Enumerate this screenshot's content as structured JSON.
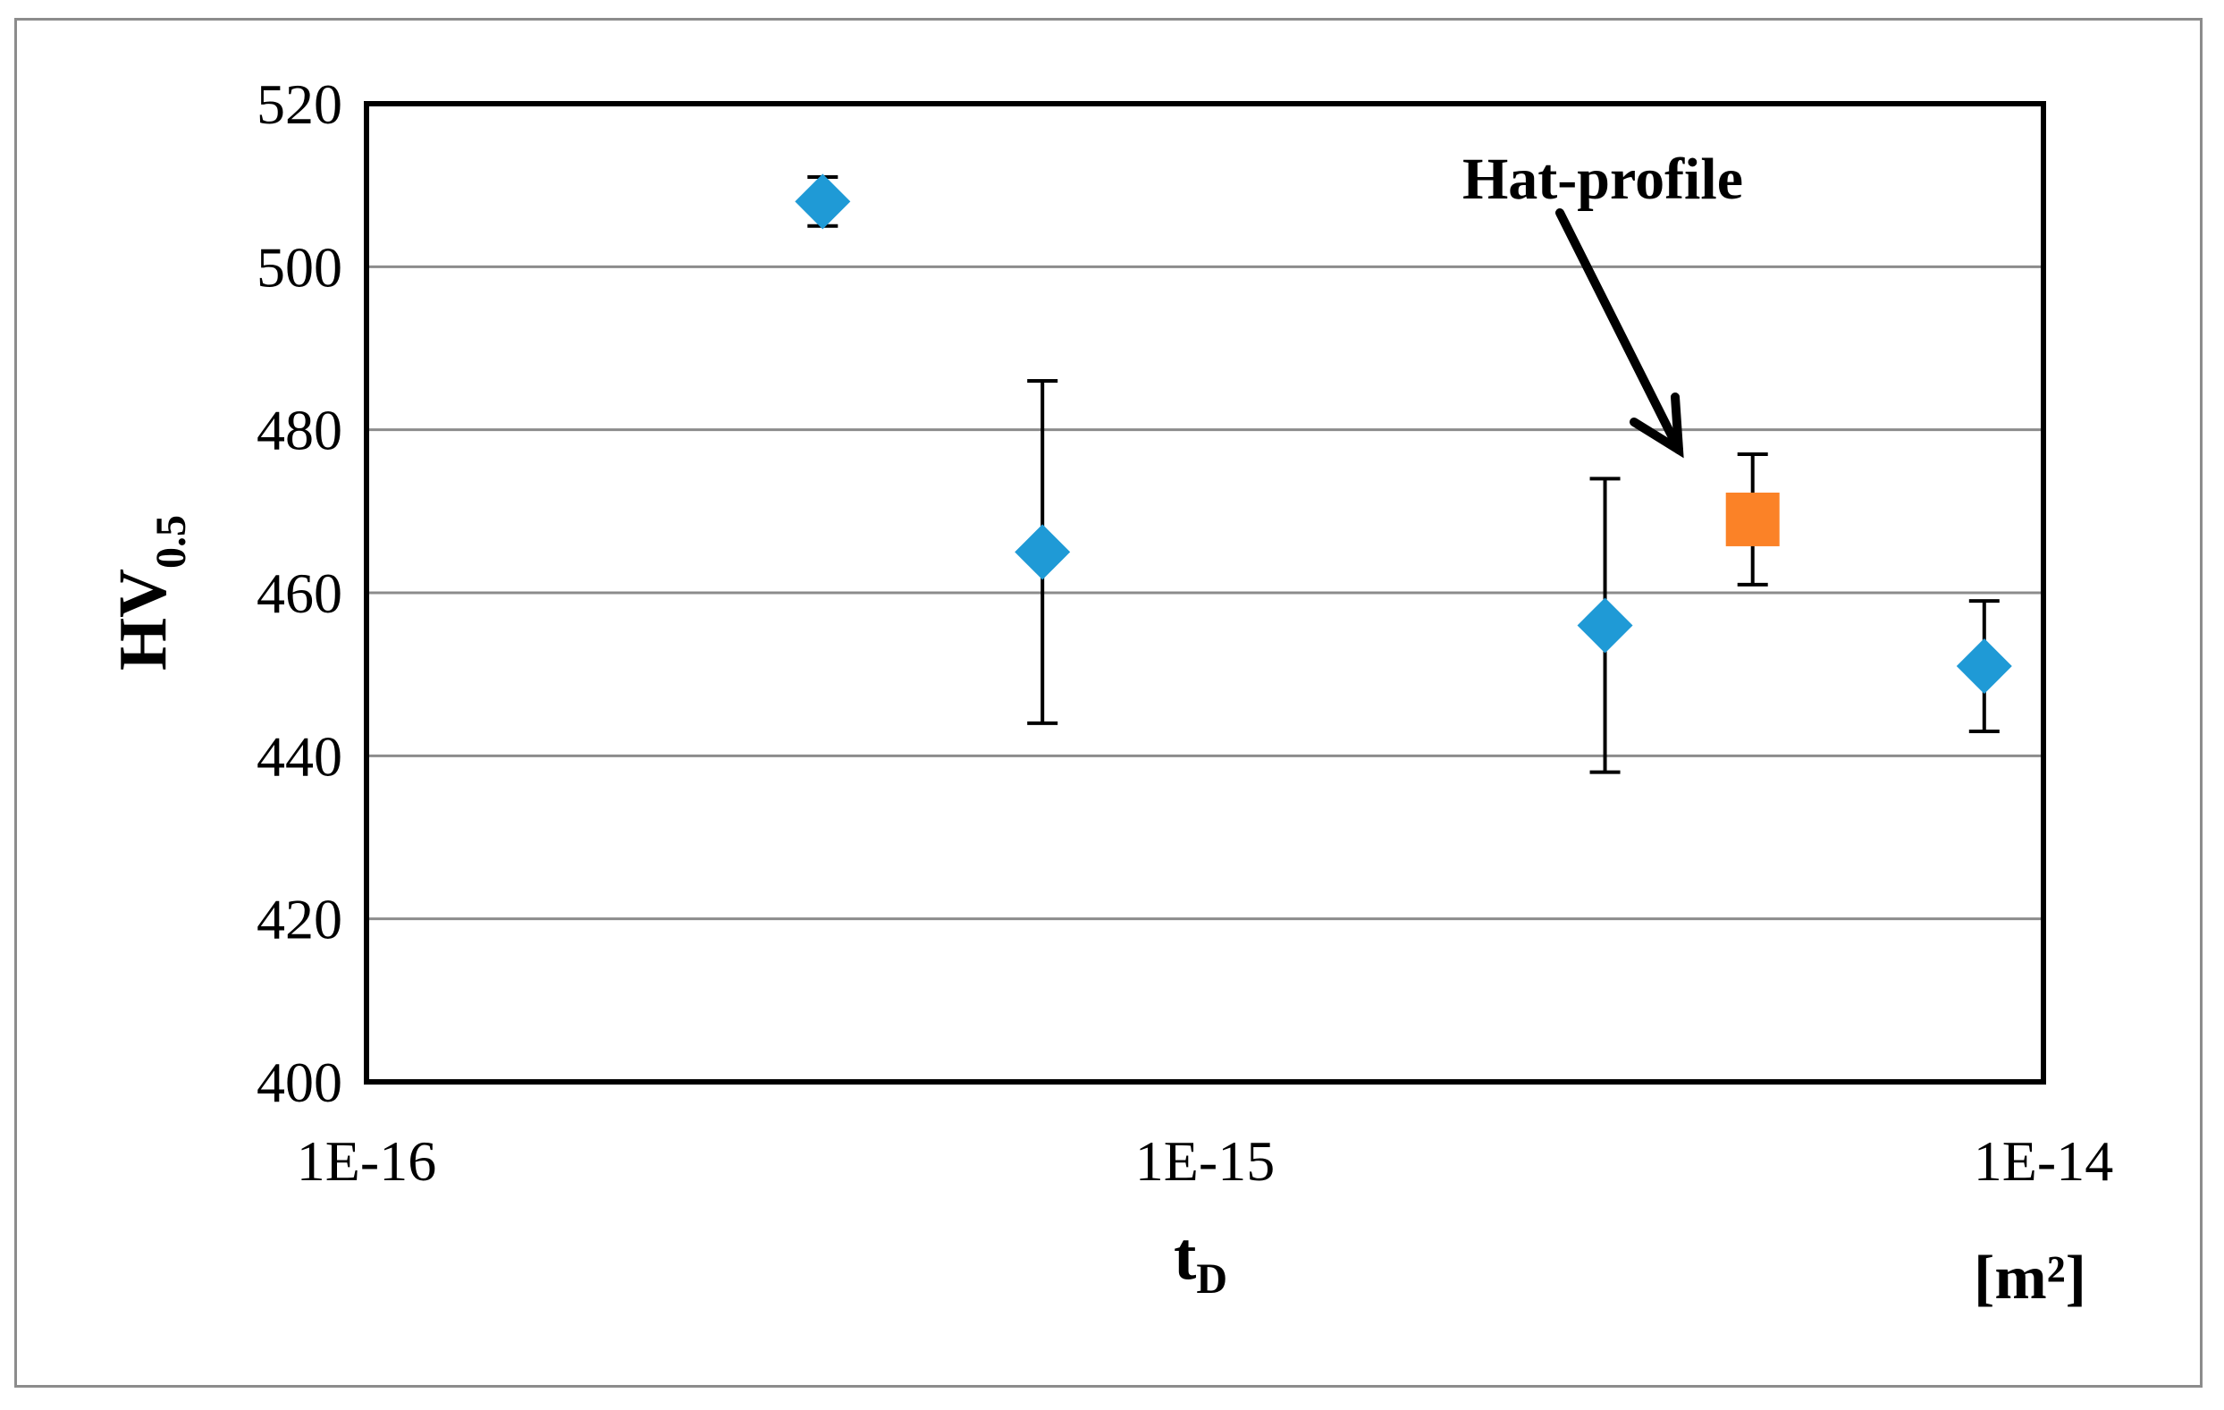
{
  "chart_data": {
    "type": "scatter",
    "title": "",
    "xlabel": {
      "main": "t",
      "sub": "D"
    },
    "ylabel": {
      "main": "HV",
      "sub": "0.5"
    },
    "x_unit_label": "[m²]",
    "xscale": "log",
    "xlim": [
      1e-16,
      1e-14
    ],
    "ylim": [
      400,
      520
    ],
    "x_ticks": [
      {
        "value": 1e-16,
        "label": "1E-16"
      },
      {
        "value": 1e-15,
        "label": "1E-15"
      },
      {
        "value": 1e-14,
        "label": "1E-14"
      }
    ],
    "y_ticks": [
      {
        "value": 400,
        "label": "400"
      },
      {
        "value": 420,
        "label": "420"
      },
      {
        "value": 440,
        "label": "440"
      },
      {
        "value": 460,
        "label": "460"
      },
      {
        "value": 480,
        "label": "480"
      },
      {
        "value": 500,
        "label": "500"
      },
      {
        "value": 520,
        "label": "520"
      }
    ],
    "grid": "horizontal",
    "legend": "none",
    "series": [
      {
        "marker": "diamond",
        "color": "#1f9ad6",
        "points": [
          {
            "x": 3.5e-16,
            "y": 508,
            "y_low": 505,
            "y_high": 511
          },
          {
            "x": 6.4e-16,
            "y": 465,
            "y_low": 444,
            "y_high": 486
          },
          {
            "x": 3e-15,
            "y": 456,
            "y_low": 438,
            "y_high": 474
          },
          {
            "x": 8.5e-15,
            "y": 451,
            "y_low": 443,
            "y_high": 459
          }
        ]
      },
      {
        "marker": "square",
        "color": "#fb8227",
        "points": [
          {
            "x": 4.5e-15,
            "y": 469,
            "y_low": 461,
            "y_high": 477
          }
        ]
      }
    ],
    "annotations": [
      {
        "text": "Hat-profile",
        "points_to": {
          "x": 4.5e-15,
          "y": 469
        }
      }
    ]
  }
}
